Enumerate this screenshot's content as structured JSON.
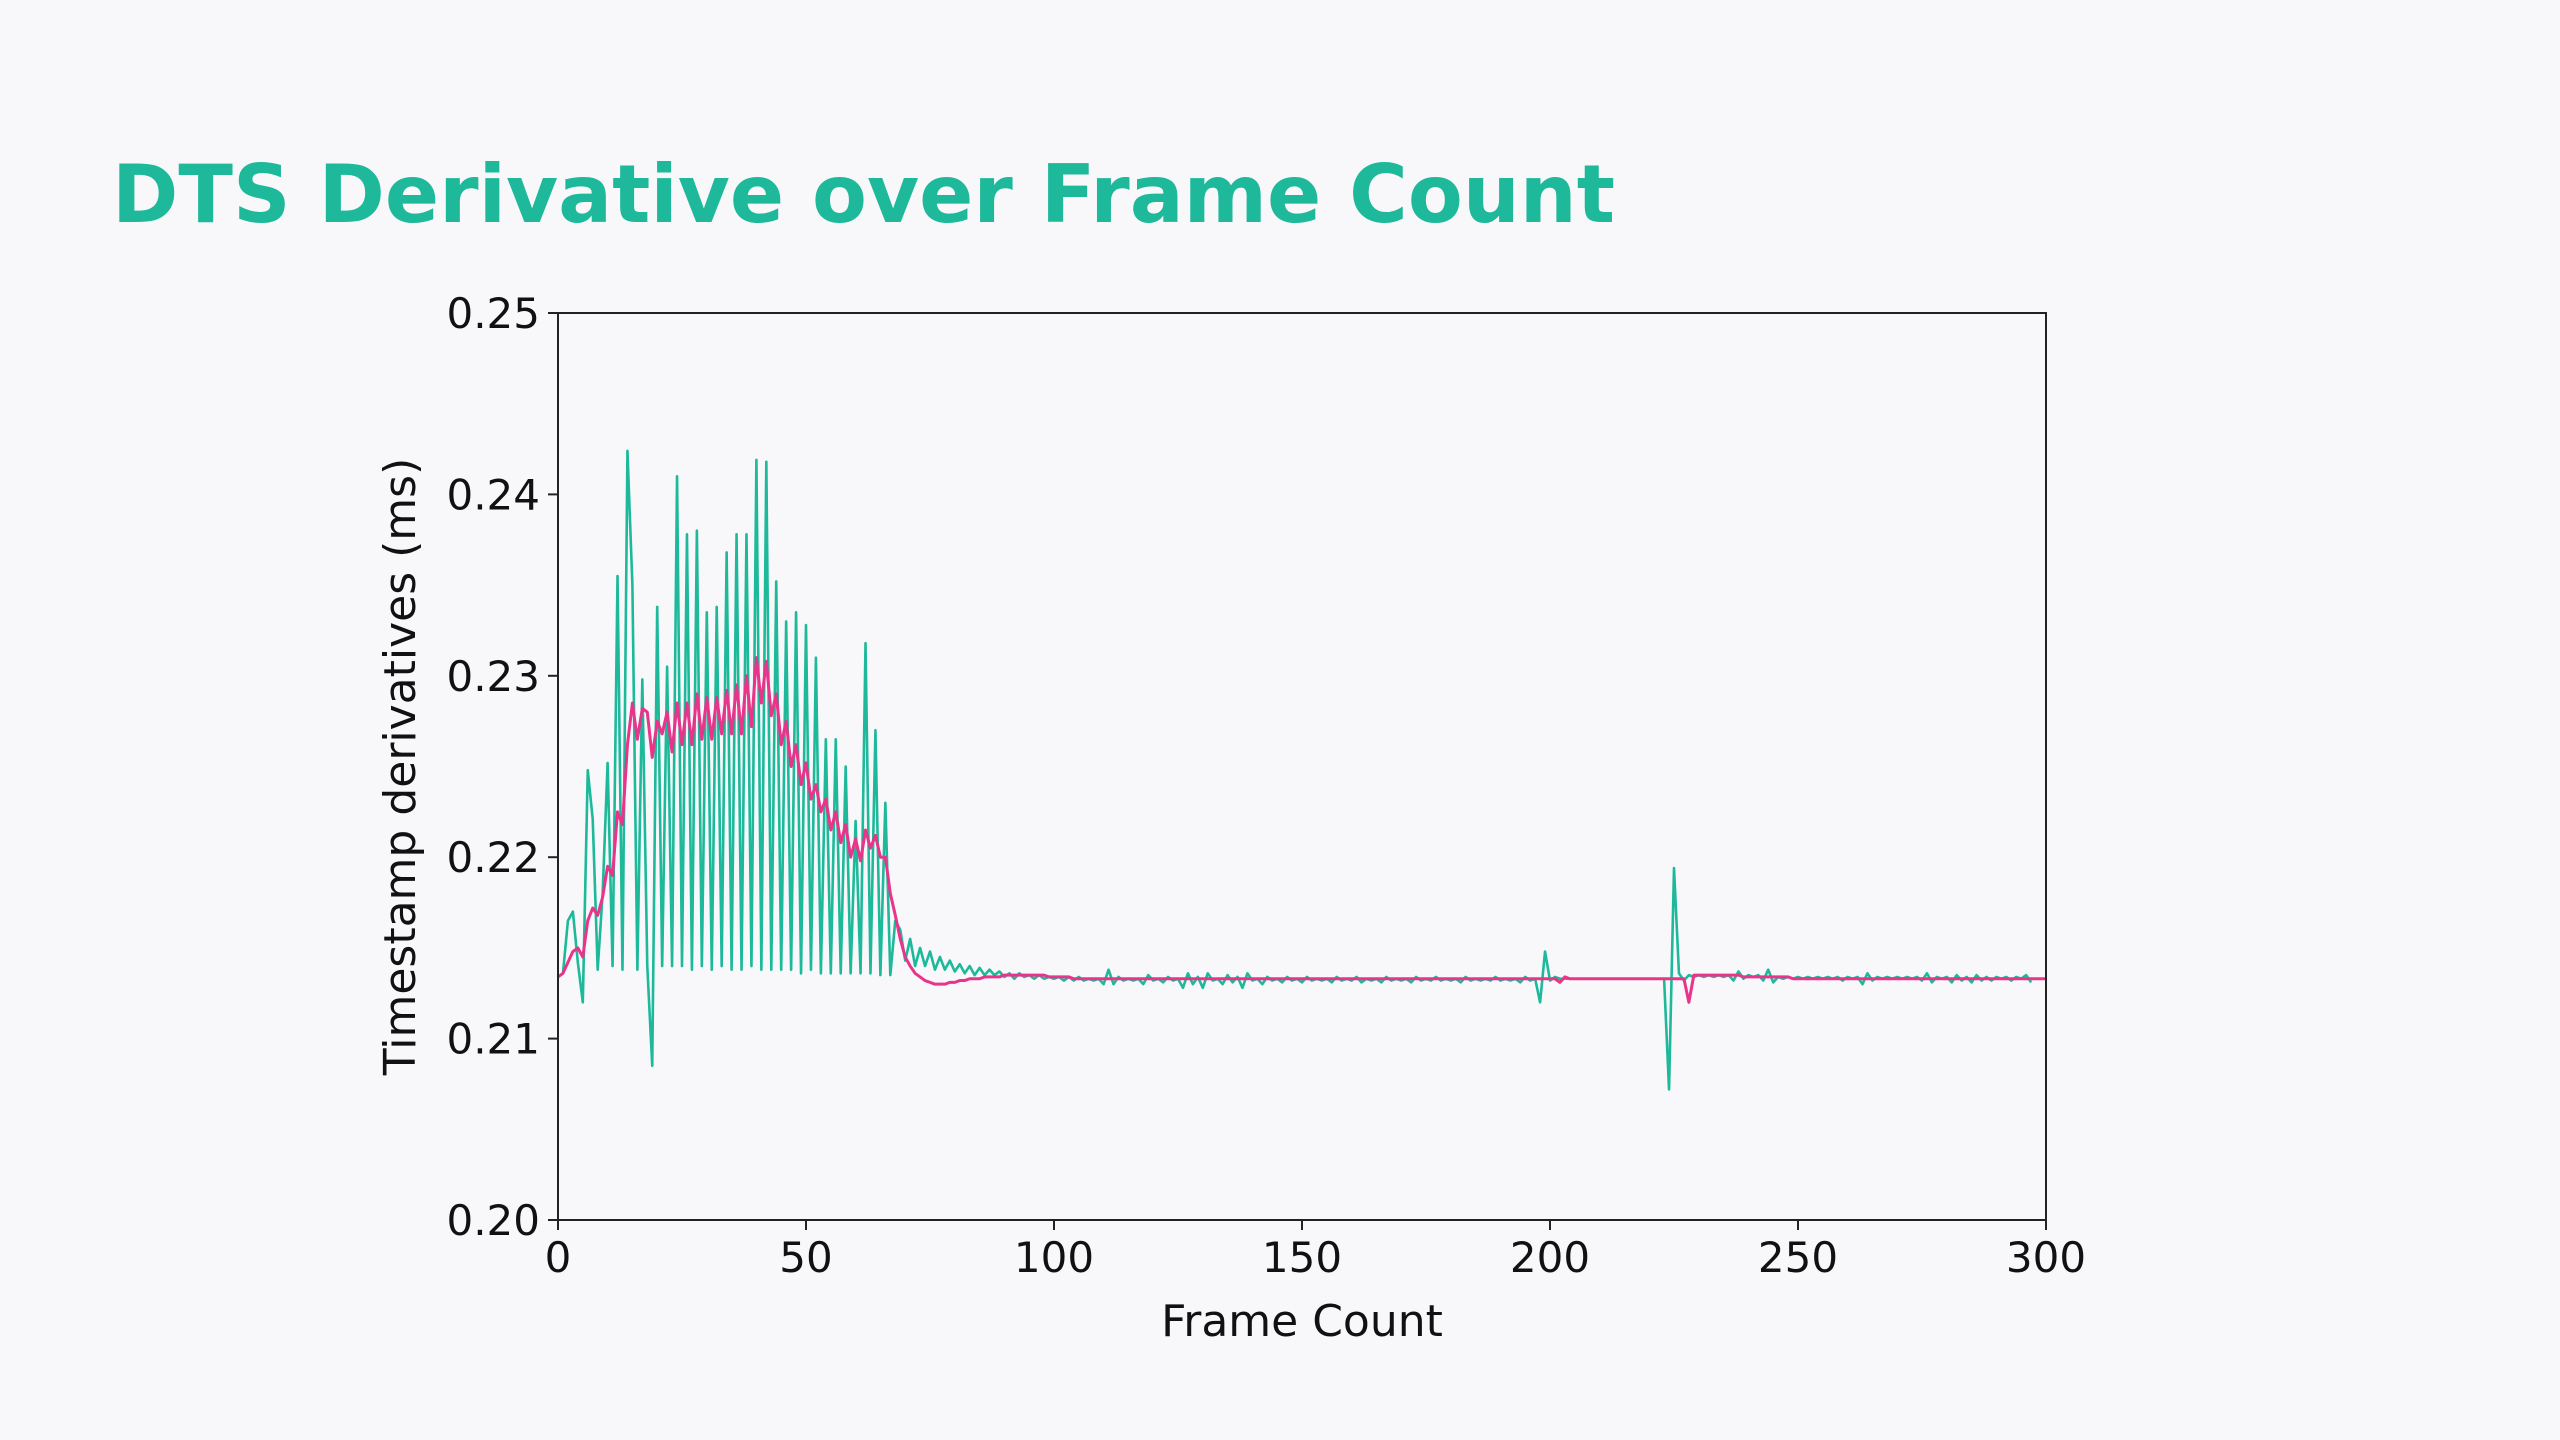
{
  "slide": {
    "title": "DTS Derivative over Frame Count"
  },
  "colors": {
    "background": "#f8f8fb",
    "title": "#1db99a",
    "raw_series": "#1db99a",
    "smoothed_series": "#e8348a",
    "axes": "#222222"
  },
  "chart_data": {
    "type": "line",
    "title": "",
    "xlabel": "Frame Count",
    "ylabel": "Timestamp derivatives (ms)",
    "xlim": [
      0,
      300
    ],
    "ylim": [
      0.2,
      0.25
    ],
    "xticks": [
      0,
      50,
      100,
      150,
      200,
      250,
      300
    ],
    "xtick_labels": [
      "0",
      "50",
      "100",
      "150",
      "200",
      "250",
      "300"
    ],
    "yticks": [
      0.2,
      0.21,
      0.22,
      0.23,
      0.24,
      0.25
    ],
    "ytick_labels": [
      "0.20",
      "0.21",
      "0.22",
      "0.23",
      "0.24",
      "0.25"
    ],
    "grid": false,
    "legend": "none",
    "series": [
      {
        "color": "#1db99a",
        "values": [
          0.2134,
          0.2136,
          0.2165,
          0.217,
          0.2142,
          0.212,
          0.2248,
          0.2221,
          0.2138,
          0.218,
          0.2252,
          0.214,
          0.2355,
          0.2138,
          0.2424,
          0.235,
          0.2138,
          0.2298,
          0.214,
          0.2085,
          0.2338,
          0.214,
          0.2305,
          0.214,
          0.241,
          0.214,
          0.2378,
          0.2138,
          0.238,
          0.214,
          0.2335,
          0.2138,
          0.2338,
          0.214,
          0.2368,
          0.2138,
          0.2378,
          0.2138,
          0.2378,
          0.214,
          0.2419,
          0.2138,
          0.2418,
          0.2138,
          0.2352,
          0.2138,
          0.233,
          0.2138,
          0.2335,
          0.2136,
          0.2328,
          0.2138,
          0.231,
          0.2136,
          0.2265,
          0.2136,
          0.2265,
          0.2136,
          0.225,
          0.2136,
          0.222,
          0.2136,
          0.2318,
          0.2136,
          0.227,
          0.2135,
          0.223,
          0.2135,
          0.2165,
          0.216,
          0.2143,
          0.2155,
          0.214,
          0.215,
          0.214,
          0.2148,
          0.2138,
          0.2145,
          0.2138,
          0.2143,
          0.2137,
          0.2141,
          0.2136,
          0.214,
          0.2135,
          0.2139,
          0.2135,
          0.2138,
          0.2135,
          0.2137,
          0.2134,
          0.2136,
          0.2133,
          0.2136,
          0.2134,
          0.2135,
          0.2133,
          0.2135,
          0.2133,
          0.2134,
          0.2133,
          0.2134,
          0.2132,
          0.2134,
          0.2132,
          0.2134,
          0.2132,
          0.2133,
          0.2132,
          0.2133,
          0.213,
          0.2138,
          0.213,
          0.2134,
          0.2132,
          0.2133,
          0.2132,
          0.2133,
          0.213,
          0.2135,
          0.2132,
          0.2133,
          0.2131,
          0.2134,
          0.2132,
          0.2133,
          0.2128,
          0.2136,
          0.213,
          0.2134,
          0.2128,
          0.2136,
          0.2132,
          0.2133,
          0.213,
          0.2135,
          0.2131,
          0.2134,
          0.2128,
          0.2136,
          0.2132,
          0.2133,
          0.213,
          0.2134,
          0.2132,
          0.2133,
          0.2131,
          0.2134,
          0.2132,
          0.2133,
          0.2131,
          0.2134,
          0.2132,
          0.2133,
          0.2132,
          0.2133,
          0.2131,
          0.2134,
          0.2132,
          0.2133,
          0.2132,
          0.2134,
          0.2131,
          0.2133,
          0.2132,
          0.2133,
          0.2131,
          0.2134,
          0.2132,
          0.2133,
          0.2132,
          0.2133,
          0.2131,
          0.2134,
          0.2132,
          0.2133,
          0.2132,
          0.2134,
          0.2132,
          0.2133,
          0.2132,
          0.2133,
          0.2131,
          0.2134,
          0.2132,
          0.2133,
          0.2132,
          0.2133,
          0.2132,
          0.2134,
          0.2132,
          0.2133,
          0.2132,
          0.2133,
          0.2131,
          0.2134,
          0.2132,
          0.2133,
          0.212,
          0.2148,
          0.2132,
          0.2134,
          0.2133,
          0.2133,
          0.2133,
          0.2133,
          0.2133,
          0.2133,
          0.2133,
          0.2133,
          0.2133,
          0.2133,
          0.2133,
          0.2133,
          0.2133,
          0.2133,
          0.2133,
          0.2133,
          0.2133,
          0.2133,
          0.2133,
          0.2133,
          0.2133,
          0.2133,
          0.2072,
          0.2194,
          0.2136,
          0.2132,
          0.2135,
          0.2134,
          0.2135,
          0.2134,
          0.2135,
          0.2134,
          0.2135,
          0.2134,
          0.2135,
          0.2132,
          0.2137,
          0.2133,
          0.2135,
          0.2134,
          0.2135,
          0.2132,
          0.2138,
          0.2131,
          0.2134,
          0.2133,
          0.2134,
          0.2133,
          0.2134,
          0.2133,
          0.2134,
          0.2133,
          0.2134,
          0.2133,
          0.2134,
          0.2133,
          0.2134,
          0.2132,
          0.2134,
          0.2133,
          0.2134,
          0.213,
          0.2136,
          0.2132,
          0.2134,
          0.2133,
          0.2134,
          0.2133,
          0.2134,
          0.2133,
          0.2134,
          0.2133,
          0.2134,
          0.2132,
          0.2136,
          0.2131,
          0.2134,
          0.2133,
          0.2134,
          0.2131,
          0.2135,
          0.2132,
          0.2134,
          0.2131,
          0.2135,
          0.2132,
          0.2134,
          0.2132,
          0.2134,
          0.2133,
          0.2134,
          0.2132,
          0.2134,
          0.2133,
          0.2135,
          0.2131
        ]
      },
      {
        "color": "#e8348a",
        "values": [
          0.2134,
          0.2136,
          0.2142,
          0.2148,
          0.215,
          0.2145,
          0.2165,
          0.2172,
          0.2168,
          0.2178,
          0.2195,
          0.219,
          0.2225,
          0.2218,
          0.2262,
          0.2285,
          0.2265,
          0.2282,
          0.228,
          0.2255,
          0.2275,
          0.2268,
          0.228,
          0.2258,
          0.2285,
          0.2262,
          0.2285,
          0.2262,
          0.229,
          0.2265,
          0.2288,
          0.2265,
          0.2288,
          0.2268,
          0.2292,
          0.2268,
          0.2295,
          0.2268,
          0.23,
          0.2272,
          0.231,
          0.2285,
          0.2308,
          0.2278,
          0.229,
          0.2262,
          0.2275,
          0.225,
          0.2262,
          0.224,
          0.2252,
          0.2232,
          0.224,
          0.2225,
          0.2232,
          0.2215,
          0.2225,
          0.2208,
          0.2218,
          0.22,
          0.221,
          0.2198,
          0.2215,
          0.2205,
          0.2212,
          0.22,
          0.22,
          0.218,
          0.2168,
          0.2155,
          0.2145,
          0.214,
          0.2136,
          0.2134,
          0.2132,
          0.2131,
          0.213,
          0.213,
          0.213,
          0.2131,
          0.2131,
          0.2132,
          0.2132,
          0.2133,
          0.2133,
          0.2133,
          0.2134,
          0.2134,
          0.2134,
          0.2134,
          0.2135,
          0.2135,
          0.2135,
          0.2135,
          0.2135,
          0.2135,
          0.2135,
          0.2135,
          0.2135,
          0.2134,
          0.2134,
          0.2134,
          0.2134,
          0.2134,
          0.2133,
          0.2133,
          0.2133,
          0.2133,
          0.2133,
          0.2133,
          0.2133,
          0.2133,
          0.2133,
          0.2133,
          0.2133,
          0.2133,
          0.2133,
          0.2133,
          0.2133,
          0.2133,
          0.2133,
          0.2133,
          0.2133,
          0.2133,
          0.2133,
          0.2133,
          0.2133,
          0.2133,
          0.2133,
          0.2133,
          0.2133,
          0.2133,
          0.2133,
          0.2133,
          0.2133,
          0.2133,
          0.2133,
          0.2133,
          0.2133,
          0.2133,
          0.2133,
          0.2133,
          0.2133,
          0.2133,
          0.2133,
          0.2133,
          0.2133,
          0.2133,
          0.2133,
          0.2133,
          0.2133,
          0.2133,
          0.2133,
          0.2133,
          0.2133,
          0.2133,
          0.2133,
          0.2133,
          0.2133,
          0.2133,
          0.2133,
          0.2133,
          0.2133,
          0.2133,
          0.2133,
          0.2133,
          0.2133,
          0.2133,
          0.2133,
          0.2133,
          0.2133,
          0.2133,
          0.2133,
          0.2133,
          0.2133,
          0.2133,
          0.2133,
          0.2133,
          0.2133,
          0.2133,
          0.2133,
          0.2133,
          0.2133,
          0.2133,
          0.2133,
          0.2133,
          0.2133,
          0.2133,
          0.2133,
          0.2133,
          0.2133,
          0.2133,
          0.2133,
          0.2133,
          0.2133,
          0.2133,
          0.2133,
          0.2133,
          0.2133,
          0.2133,
          0.2133,
          0.2133,
          0.2131,
          0.2134,
          0.2133,
          0.2133,
          0.2133,
          0.2133,
          0.2133,
          0.2133,
          0.2133,
          0.2133,
          0.2133,
          0.2133,
          0.2133,
          0.2133,
          0.2133,
          0.2133,
          0.2133,
          0.2133,
          0.2133,
          0.2133,
          0.2133,
          0.2133,
          0.2133,
          0.2133,
          0.2133,
          0.2133,
          0.212,
          0.2135,
          0.2135,
          0.2135,
          0.2135,
          0.2135,
          0.2135,
          0.2135,
          0.2135,
          0.2135,
          0.2135,
          0.2134,
          0.2134,
          0.2134,
          0.2134,
          0.2134,
          0.2134,
          0.2134,
          0.2134,
          0.2134,
          0.2134,
          0.2133,
          0.2133,
          0.2133,
          0.2133,
          0.2133,
          0.2133,
          0.2133,
          0.2133,
          0.2133,
          0.2133,
          0.2133,
          0.2133,
          0.2133,
          0.2133,
          0.2133,
          0.2133,
          0.2133,
          0.2133,
          0.2133,
          0.2133,
          0.2133,
          0.2133,
          0.2133,
          0.2133,
          0.2133,
          0.2133,
          0.2133,
          0.2133,
          0.2133,
          0.2133,
          0.2133,
          0.2133,
          0.2133,
          0.2133,
          0.2133,
          0.2133,
          0.2133,
          0.2133,
          0.2133,
          0.2133,
          0.2133,
          0.2133,
          0.2133,
          0.2133,
          0.2133,
          0.2133,
          0.2133,
          0.2133,
          0.2133,
          0.2133,
          0.2133,
          0.2133
        ]
      }
    ]
  }
}
